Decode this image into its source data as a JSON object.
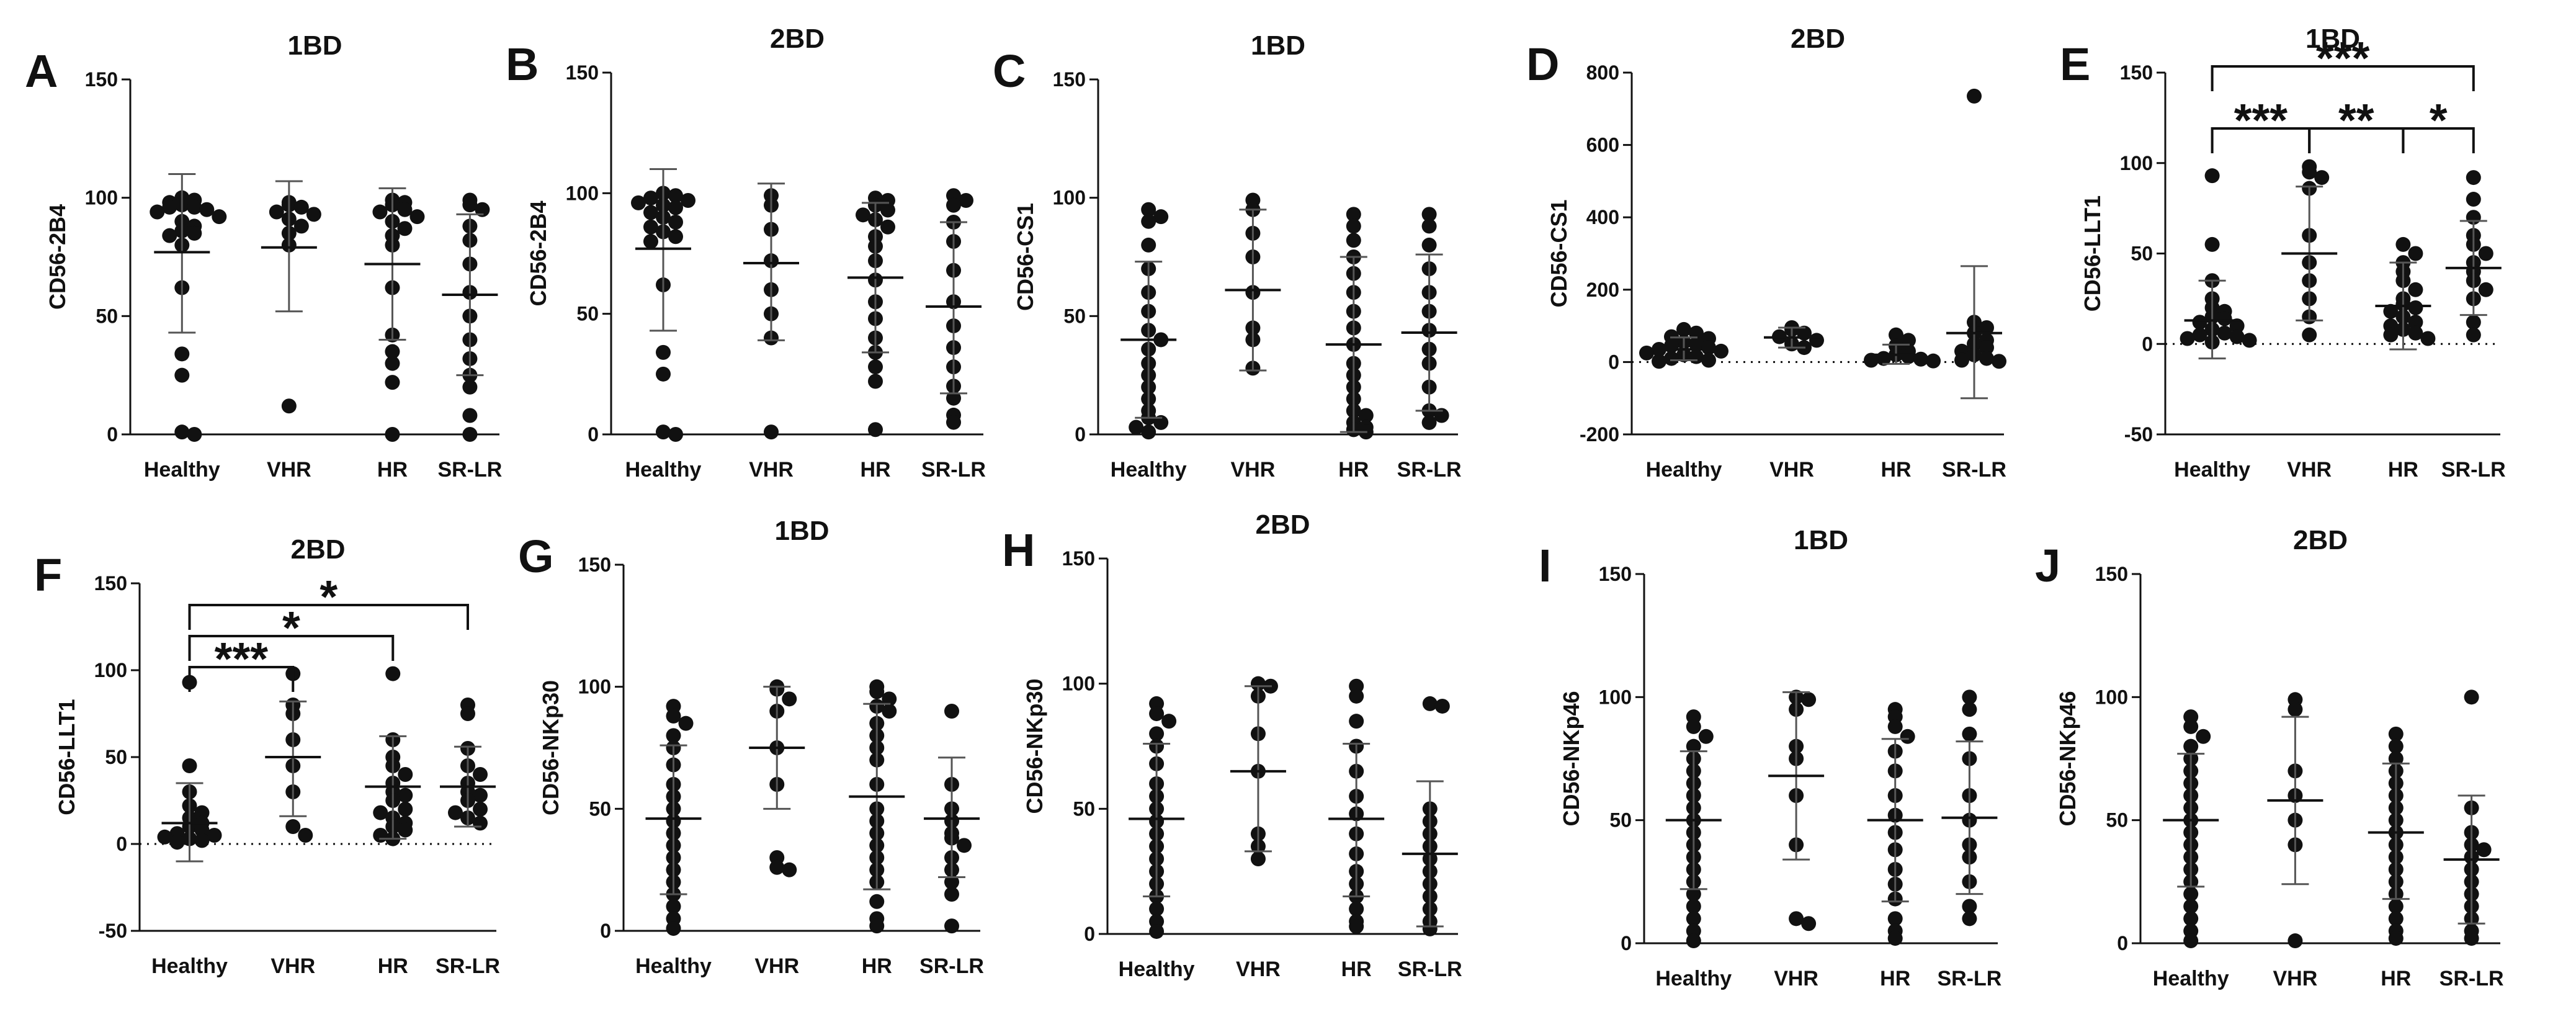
{
  "chart_data": [
    {
      "panel": "A",
      "type": "scatter",
      "title": "1BD",
      "ylabel": "CD56-2B4",
      "ylim": [
        0,
        150
      ],
      "yticks": [
        0,
        50,
        100,
        150
      ],
      "categories": [
        "Healthy",
        "VHR",
        "HR",
        "SR-LR"
      ],
      "means": [
        77,
        79,
        72,
        59
      ],
      "sd_upper": [
        110,
        107,
        104,
        93
      ],
      "sd_lower": [
        43,
        52,
        40,
        25
      ],
      "points": [
        [
          100,
          99,
          98,
          97,
          96,
          96,
          95,
          94,
          92,
          90,
          88,
          86,
          85,
          84,
          80,
          62,
          34,
          25,
          1,
          0
        ],
        [
          98,
          97,
          96,
          94,
          93,
          91,
          88,
          85,
          80,
          12
        ],
        [
          99,
          98,
          97,
          95,
          94,
          92,
          90,
          87,
          84,
          80,
          62,
          42,
          35,
          30,
          22,
          0
        ],
        [
          99,
          97,
          95,
          88,
          82,
          72,
          60,
          50,
          40,
          32,
          25,
          20,
          8,
          0
        ]
      ],
      "annotations": []
    },
    {
      "panel": "B",
      "type": "scatter",
      "title": "2BD",
      "ylabel": "CD56-2B4",
      "ylim": [
        0,
        150
      ],
      "yticks": [
        0,
        50,
        100,
        150
      ],
      "categories": [
        "Healthy",
        "VHR",
        "HR",
        "SR-LR"
      ],
      "means": [
        77,
        71,
        65,
        53
      ],
      "sd_upper": [
        110,
        104,
        96,
        88
      ],
      "sd_lower": [
        43,
        39,
        34,
        17
      ],
      "points": [
        [
          100,
          99,
          98,
          97,
          96,
          95,
          94,
          92,
          90,
          88,
          86,
          84,
          82,
          80,
          62,
          34,
          25,
          1,
          0
        ],
        [
          99,
          95,
          85,
          72,
          60,
          50,
          40,
          1
        ],
        [
          98,
          97,
          95,
          93,
          91,
          89,
          86,
          82,
          78,
          72,
          64,
          55,
          48,
          40,
          34,
          28,
          22,
          2
        ],
        [
          99,
          97,
          95,
          88,
          80,
          68,
          55,
          45,
          36,
          28,
          20,
          15,
          8,
          5
        ]
      ],
      "annotations": []
    },
    {
      "panel": "C",
      "type": "scatter",
      "title": "1BD",
      "ylabel": "CD56-CS1",
      "ylim": [
        0,
        150
      ],
      "yticks": [
        0,
        50,
        100,
        150
      ],
      "categories": [
        "Healthy",
        "VHR",
        "HR",
        "SR-LR"
      ],
      "means": [
        40,
        61,
        38,
        43
      ],
      "sd_upper": [
        73,
        95,
        75,
        76
      ],
      "sd_lower": [
        7,
        27,
        1,
        10
      ],
      "points": [
        [
          95,
          92,
          90,
          80,
          70,
          60,
          52,
          44,
          40,
          36,
          30,
          25,
          20,
          15,
          10,
          7,
          5,
          3,
          1
        ],
        [
          99,
          95,
          85,
          75,
          60,
          45,
          40,
          28
        ],
        [
          93,
          88,
          82,
          75,
          68,
          60,
          52,
          45,
          38,
          30,
          25,
          20,
          15,
          10,
          8,
          5,
          3,
          2,
          1
        ],
        [
          93,
          88,
          80,
          70,
          60,
          52,
          44,
          36,
          30,
          20,
          10,
          8,
          5
        ]
      ],
      "annotations": []
    },
    {
      "panel": "D",
      "type": "scatter",
      "title": "2BD",
      "ylabel": "CD56-CS1",
      "ylim": [
        -200,
        800
      ],
      "yticks": [
        -200,
        0,
        200,
        400,
        600,
        800
      ],
      "categories": [
        "Healthy",
        "VHR",
        "HR",
        "SR-LR"
      ],
      "means": [
        35,
        68,
        20,
        80
      ],
      "sd_upper": [
        68,
        95,
        48,
        265
      ],
      "sd_lower": [
        5,
        40,
        -5,
        -100
      ],
      "points": [
        [
          90,
          80,
          70,
          65,
          55,
          50,
          45,
          40,
          35,
          30,
          25,
          20,
          15,
          10,
          5,
          2
        ],
        [
          95,
          90,
          80,
          70,
          60,
          50,
          40
        ],
        [
          75,
          60,
          45,
          30,
          20,
          15,
          10,
          8,
          5,
          3
        ],
        [
          735,
          110,
          95,
          80,
          60,
          50,
          40,
          30,
          20,
          10,
          5,
          2
        ]
      ],
      "annotations": []
    },
    {
      "panel": "E",
      "type": "scatter",
      "title": "1BD",
      "ylabel": "CD56-LLT1",
      "ylim": [
        -50,
        150
      ],
      "yticks": [
        -50,
        0,
        50,
        100,
        150
      ],
      "categories": [
        "Healthy",
        "VHR",
        "HR",
        "SR-LR"
      ],
      "means": [
        13,
        50,
        21,
        42
      ],
      "sd_upper": [
        35,
        87,
        45,
        68
      ],
      "sd_lower": [
        -8,
        13,
        -3,
        16
      ],
      "points": [
        [
          93,
          55,
          35,
          25,
          20,
          18,
          15,
          14,
          12,
          10,
          8,
          6,
          5,
          4,
          3,
          2,
          1
        ],
        [
          98,
          95,
          92,
          86,
          60,
          45,
          35,
          25,
          15,
          5
        ],
        [
          55,
          50,
          45,
          40,
          35,
          30,
          25,
          22,
          20,
          18,
          15,
          12,
          10,
          8,
          6,
          5,
          3
        ],
        [
          92,
          80,
          70,
          60,
          55,
          50,
          45,
          40,
          35,
          30,
          25,
          12,
          5
        ]
      ],
      "annotations": [
        {
          "stars": "***",
          "from": 0,
          "to": 3
        },
        {
          "stars": "***",
          "from": 0,
          "to": 1
        },
        {
          "stars": "**",
          "from": 1,
          "to": 2
        },
        {
          "stars": "*",
          "from": 2,
          "to": 3
        }
      ]
    },
    {
      "panel": "F",
      "type": "scatter",
      "title": "2BD",
      "ylabel": "CD56-LLT1",
      "ylim": [
        -50,
        150
      ],
      "yticks": [
        -50,
        0,
        50,
        100,
        150
      ],
      "categories": [
        "Healthy",
        "VHR",
        "HR",
        "SR-LR"
      ],
      "means": [
        12,
        50,
        33,
        33
      ],
      "sd_upper": [
        35,
        82,
        62,
        56
      ],
      "sd_lower": [
        -10,
        16,
        3,
        10
      ],
      "points": [
        [
          93,
          45,
          30,
          22,
          18,
          15,
          12,
          10,
          8,
          6,
          5,
          4,
          3,
          2,
          1
        ],
        [
          98,
          80,
          75,
          60,
          45,
          30,
          10,
          5
        ],
        [
          98,
          60,
          50,
          45,
          40,
          35,
          30,
          28,
          25,
          20,
          18,
          15,
          12,
          10,
          8,
          5,
          3
        ],
        [
          80,
          75,
          55,
          45,
          40,
          35,
          30,
          28,
          25,
          20,
          18,
          15,
          12
        ]
      ],
      "annotations": [
        {
          "stars": "*",
          "from": 0,
          "to": 3
        },
        {
          "stars": "*",
          "from": 0,
          "to": 2
        },
        {
          "stars": "***",
          "from": 0,
          "to": 1
        }
      ]
    },
    {
      "panel": "G",
      "type": "scatter",
      "title": "1BD",
      "ylabel": "CD56-NKp30",
      "ylim": [
        0,
        150
      ],
      "yticks": [
        0,
        50,
        100,
        150
      ],
      "categories": [
        "Healthy",
        "VHR",
        "HR",
        "SR-LR"
      ],
      "means": [
        46,
        75,
        55,
        46
      ],
      "sd_upper": [
        76,
        100,
        93,
        71
      ],
      "sd_lower": [
        15,
        50,
        17,
        22
      ],
      "points": [
        [
          92,
          88,
          85,
          80,
          75,
          68,
          60,
          55,
          50,
          45,
          40,
          35,
          30,
          25,
          20,
          15,
          10,
          5,
          1
        ],
        [
          100,
          99,
          95,
          90,
          75,
          60,
          30,
          26,
          25
        ],
        [
          100,
          98,
          95,
          92,
          90,
          85,
          80,
          75,
          70,
          60,
          50,
          45,
          40,
          35,
          30,
          25,
          20,
          12,
          5,
          2
        ],
        [
          90,
          60,
          50,
          45,
          40,
          38,
          35,
          30,
          25,
          20,
          15,
          2
        ]
      ],
      "annotations": []
    },
    {
      "panel": "H",
      "type": "scatter",
      "title": "2BD",
      "ylabel": "CD56-NKp30",
      "ylim": [
        0,
        150
      ],
      "yticks": [
        0,
        50,
        100,
        150
      ],
      "categories": [
        "Healthy",
        "VHR",
        "HR",
        "SR-LR"
      ],
      "means": [
        46,
        65,
        46,
        32
      ],
      "sd_upper": [
        76,
        99,
        76,
        61
      ],
      "sd_lower": [
        15,
        33,
        15,
        3
      ],
      "points": [
        [
          92,
          88,
          85,
          80,
          75,
          68,
          60,
          55,
          50,
          45,
          40,
          35,
          30,
          25,
          20,
          15,
          10,
          5,
          1
        ],
        [
          100,
          99,
          95,
          80,
          65,
          40,
          35,
          30
        ],
        [
          99,
          95,
          85,
          75,
          65,
          55,
          48,
          40,
          32,
          25,
          20,
          15,
          10,
          5,
          3
        ],
        [
          92,
          91,
          50,
          45,
          40,
          35,
          30,
          25,
          20,
          15,
          10,
          5,
          2
        ]
      ],
      "annotations": []
    },
    {
      "panel": "I",
      "type": "scatter",
      "title": "1BD",
      "ylabel": "CD56-NKp46",
      "ylim": [
        0,
        150
      ],
      "yticks": [
        0,
        50,
        100,
        150
      ],
      "categories": [
        "Healthy",
        "VHR",
        "HR",
        "SR-LR"
      ],
      "means": [
        50,
        68,
        50,
        51
      ],
      "sd_upper": [
        78,
        102,
        83,
        82
      ],
      "sd_lower": [
        22,
        34,
        17,
        20
      ],
      "points": [
        [
          92,
          88,
          84,
          80,
          75,
          70,
          65,
          60,
          55,
          50,
          45,
          40,
          35,
          30,
          25,
          20,
          15,
          10,
          5,
          1
        ],
        [
          100,
          99,
          95,
          80,
          75,
          60,
          40,
          10,
          8
        ],
        [
          95,
          92,
          88,
          84,
          78,
          70,
          60,
          52,
          45,
          38,
          30,
          24,
          18,
          10,
          5,
          2
        ],
        [
          100,
          95,
          85,
          75,
          60,
          50,
          40,
          35,
          25,
          15,
          10
        ]
      ],
      "annotations": []
    },
    {
      "panel": "J",
      "type": "scatter",
      "title": "2BD",
      "ylabel": "CD56-NKp46",
      "ylim": [
        0,
        150
      ],
      "yticks": [
        0,
        50,
        100,
        150
      ],
      "categories": [
        "Healthy",
        "VHR",
        "HR",
        "SR-LR"
      ],
      "means": [
        50,
        58,
        45,
        34
      ],
      "sd_upper": [
        77,
        92,
        73,
        60
      ],
      "sd_lower": [
        23,
        24,
        18,
        8
      ],
      "points": [
        [
          92,
          88,
          84,
          80,
          75,
          70,
          65,
          60,
          55,
          50,
          45,
          40,
          35,
          30,
          25,
          20,
          15,
          10,
          5,
          1
        ],
        [
          99,
          95,
          70,
          60,
          50,
          40,
          1
        ],
        [
          85,
          80,
          75,
          70,
          65,
          60,
          55,
          50,
          45,
          40,
          35,
          30,
          25,
          20,
          15,
          10,
          5,
          2
        ],
        [
          100,
          55,
          45,
          40,
          38,
          35,
          30,
          25,
          20,
          15,
          10,
          5,
          2
        ]
      ],
      "annotations": []
    }
  ]
}
